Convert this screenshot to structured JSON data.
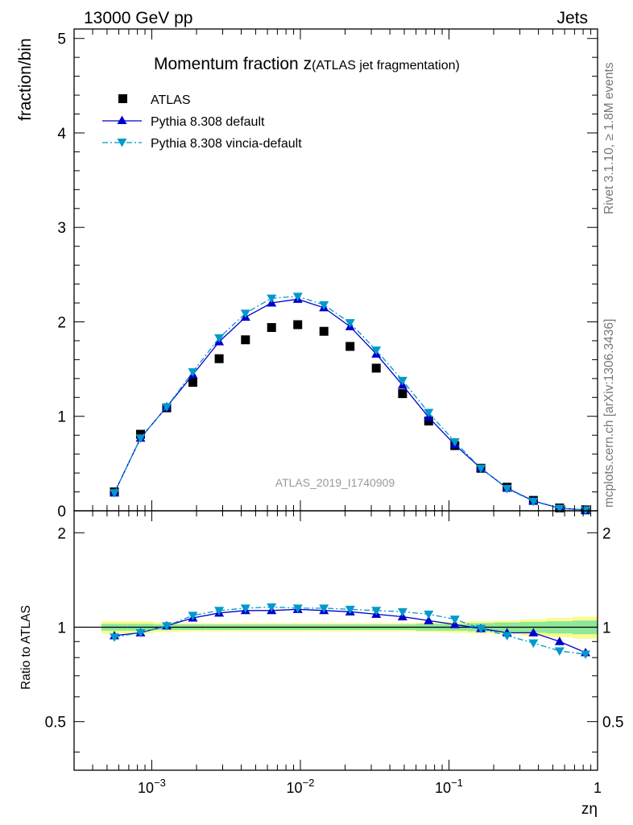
{
  "header": {
    "left": "13000 GeV pp",
    "right": "Jets"
  },
  "side": {
    "rivet": "Rivet 3.1.10, ≥ 1.8M events",
    "mcplots": "mcplots.cern.ch [arXiv:1306.3436]"
  },
  "chart_data": {
    "type": "scatter",
    "title_main": "Momentum fraction z",
    "title_sub": "(ATLAS jet fragmentation)",
    "watermark": "ATLAS_2019_I1740909",
    "xlabel": "zη",
    "ylabel_top": "fraction/bin",
    "ylabel_bottom": "Ratio to ATLAS",
    "xscale": "log",
    "xlim": [
      0.0003,
      1
    ],
    "ylim_top": [
      0,
      5.1
    ],
    "ylim_bottom": [
      0.35,
      2.35
    ],
    "x_tick_labels": [
      "10−3",
      "10−2",
      "10−1",
      "1"
    ],
    "top_y_tick_labels": [
      "0",
      "1",
      "2",
      "3",
      "4",
      "5"
    ],
    "bottom_y_tick_labels": [
      "0.5",
      "1",
      "2"
    ],
    "legend_position": "top-left",
    "colors": {
      "atlas": "#000000",
      "pythia_default": "#0000cc",
      "pythia_vincia": "#0099cc",
      "band_inner": "#8ee89a",
      "band_outer": "#fbfb8f"
    },
    "x": [
      0.00056,
      0.00084,
      0.00126,
      0.00189,
      0.00284,
      0.00427,
      0.0064,
      0.0096,
      0.0144,
      0.0216,
      0.0324,
      0.0487,
      0.073,
      0.1095,
      0.164,
      0.246,
      0.37,
      0.555,
      0.83
    ],
    "series": [
      {
        "name": "ATLAS",
        "marker": "square",
        "values": [
          0.2,
          0.81,
          1.09,
          1.36,
          1.61,
          1.81,
          1.94,
          1.97,
          1.9,
          1.74,
          1.51,
          1.24,
          0.95,
          0.69,
          0.45,
          0.25,
          0.11,
          0.03,
          0.01
        ]
      },
      {
        "name": "Pythia 8.308 default",
        "marker": "triangle-up",
        "line": "solid",
        "values": [
          0.19,
          0.77,
          1.1,
          1.44,
          1.79,
          2.05,
          2.2,
          2.24,
          2.15,
          1.95,
          1.66,
          1.33,
          0.99,
          0.7,
          0.45,
          0.24,
          0.105,
          0.028,
          0.009
        ]
      },
      {
        "name": "Pythia 8.308 vincia-default",
        "marker": "triangle-down",
        "line": "dash-dot",
        "values": [
          0.19,
          0.77,
          1.1,
          1.47,
          1.83,
          2.09,
          2.25,
          2.27,
          2.18,
          1.99,
          1.7,
          1.38,
          1.04,
          0.73,
          0.45,
          0.235,
          0.1,
          0.026,
          0.008
        ]
      }
    ],
    "ratio": {
      "reference": 1.0,
      "series": [
        {
          "name": "Pythia 8.308 default",
          "values": [
            0.94,
            0.96,
            1.01,
            1.07,
            1.11,
            1.13,
            1.13,
            1.14,
            1.13,
            1.12,
            1.1,
            1.08,
            1.05,
            1.02,
            0.99,
            0.96,
            0.96,
            0.9,
            0.83
          ]
        },
        {
          "name": "Pythia 8.308 vincia-default",
          "values": [
            0.93,
            0.96,
            1.01,
            1.09,
            1.13,
            1.15,
            1.16,
            1.15,
            1.15,
            1.14,
            1.13,
            1.12,
            1.1,
            1.06,
            0.99,
            0.94,
            0.89,
            0.84,
            0.82
          ]
        }
      ],
      "band_inner": [
        0.025,
        0.025,
        0.02,
        0.02,
        0.02,
        0.02,
        0.02,
        0.02,
        0.02,
        0.02,
        0.02,
        0.02,
        0.025,
        0.025,
        0.03,
        0.035,
        0.04,
        0.045,
        0.05
      ],
      "band_outer": [
        0.045,
        0.045,
        0.035,
        0.03,
        0.03,
        0.03,
        0.03,
        0.03,
        0.03,
        0.03,
        0.03,
        0.03,
        0.035,
        0.04,
        0.045,
        0.05,
        0.06,
        0.07,
        0.08
      ]
    }
  }
}
